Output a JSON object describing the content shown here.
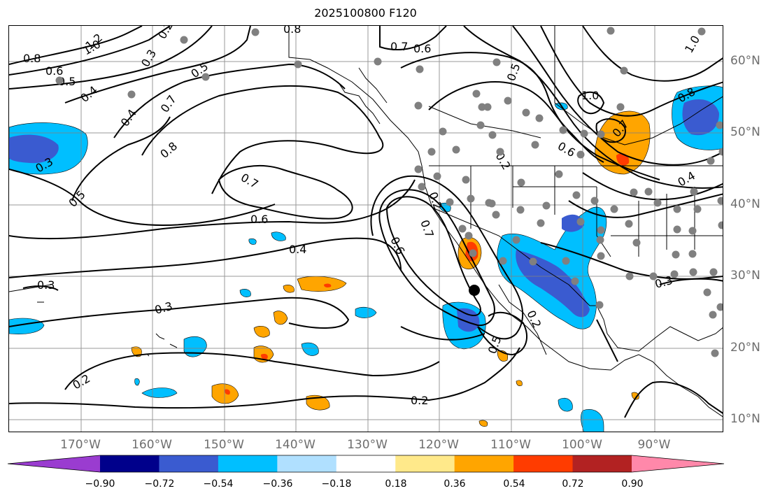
{
  "title": "2025100800 F120",
  "lon_labels": [
    "170°W",
    "160°W",
    "150°W",
    "140°W",
    "130°W",
    "120°W",
    "110°W",
    "100°W",
    "90°W"
  ],
  "lat_labels": [
    "60°N",
    "50°N",
    "40°N",
    "30°N",
    "20°N",
    "10°N"
  ],
  "colorbar": {
    "ticks": [
      "−0.90",
      "−0.72",
      "−0.54",
      "−0.36",
      "−0.18",
      "0.18",
      "0.36",
      "0.54",
      "0.72",
      "0.90"
    ],
    "colors": [
      "#9a3cd0",
      "#00008b",
      "#3a5bd0",
      "#00bfff",
      "#b0e0ff",
      "#ffffff",
      "#ffe98a",
      "#ffa500",
      "#ff3c00",
      "#b22222",
      "#ff88aa"
    ]
  },
  "contour_labels": {
    "c1": "0.8",
    "c2": "0.6",
    "c3": "0.5",
    "c4": "0.4",
    "c5": "0.7",
    "c6": "0.8",
    "c7": "0.3",
    "c8": "0.5",
    "c9": "0.7",
    "c10": "0.6",
    "c11": "0.4",
    "c12": "0.3",
    "c13": "0.3",
    "c14": "0.2",
    "c15": "0.2",
    "c16": "0.6",
    "c17": "0.7",
    "c18": "0.5",
    "c19": "0.2",
    "c20": "0.2",
    "c21": "1.0",
    "c22": "0.7",
    "c23": "0.6",
    "c24": "0.8",
    "c25": "0.4",
    "c26": "0.3",
    "c27": "0.7",
    "c28": "0.6",
    "c29": "0.5",
    "c30": "1.2",
    "c31": "1.0",
    "c32": "0.8",
    "c33": "0.2",
    "c34": "0.3",
    "c35": "0.2",
    "c36": "0.5",
    "c37": "1.0",
    "c38": "0.4"
  },
  "colors": {
    "grid": "#808080",
    "station": "#808080",
    "contour": "#000000"
  }
}
